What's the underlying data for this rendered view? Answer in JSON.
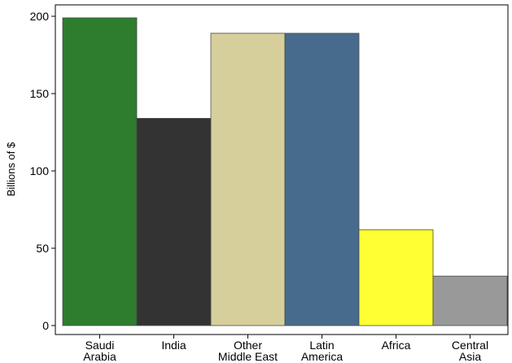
{
  "chart_data": {
    "type": "bar",
    "ylabel": "Billions of $",
    "xlabel": "",
    "ylim": [
      0,
      200
    ],
    "yticks": [
      0,
      50,
      100,
      150,
      200
    ],
    "categories": [
      {
        "lines": [
          "Saudi",
          "Arabia"
        ],
        "value": 199,
        "color": "#2e7d2e"
      },
      {
        "lines": [
          "India"
        ],
        "value": 134,
        "color": "#333333"
      },
      {
        "lines": [
          "Other",
          "Middle East"
        ],
        "value": 189,
        "color": "#d6cf9b"
      },
      {
        "lines": [
          "Latin",
          "America"
        ],
        "value": 189,
        "color": "#476b8c"
      },
      {
        "lines": [
          "Africa"
        ],
        "value": 62,
        "color": "#ffff33"
      },
      {
        "lines": [
          "Central",
          "Asia"
        ],
        "value": 32,
        "color": "#999999"
      }
    ]
  }
}
